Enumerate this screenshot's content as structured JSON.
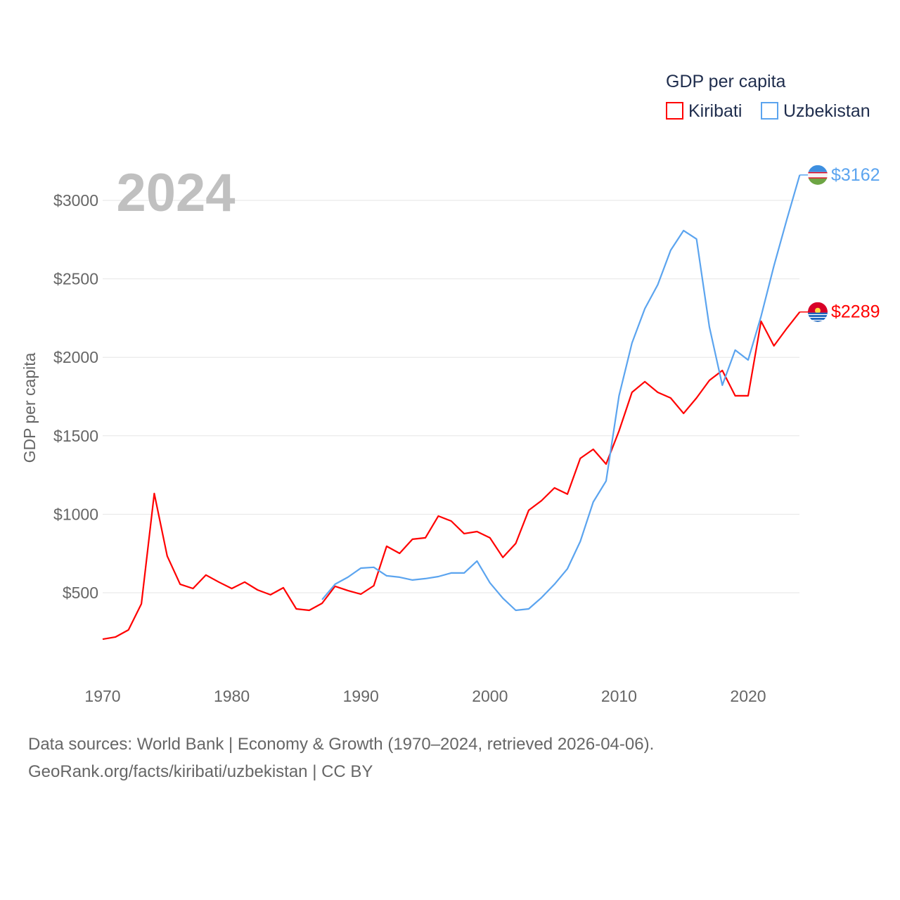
{
  "chart_data": {
    "type": "line",
    "title": "GDP per capita",
    "year_label": "2024",
    "ylabel": "GDP per capita",
    "xlabel": "",
    "xlim": [
      1970,
      2024
    ],
    "ylim": [
      0,
      3200
    ],
    "x_ticks": [
      1970,
      1980,
      1990,
      2000,
      2010,
      2020
    ],
    "y_ticks": [
      500,
      1000,
      1500,
      2000,
      2500,
      3000
    ],
    "y_tick_labels": [
      "$500",
      "$1000",
      "$1500",
      "$2000",
      "$2500",
      "$3000"
    ],
    "x_tick_labels": [
      "1970",
      "1980",
      "1990",
      "2000",
      "2010",
      "2020"
    ],
    "legend_position": "top-right",
    "series": [
      {
        "name": "Kiribati",
        "color": "#ff0000",
        "start": 1970,
        "end_label": "$2289",
        "values": [
          204,
          218,
          263,
          429,
          1132,
          734,
          554,
          527,
          613,
          568,
          527,
          568,
          518,
          487,
          532,
          397,
          388,
          433,
          541,
          514,
          491,
          545,
          796,
          751,
          841,
          850,
          989,
          957,
          877,
          890,
          850,
          725,
          814,
          1025,
          1087,
          1168,
          1128,
          1356,
          1414,
          1320,
          1531,
          1777,
          1845,
          1777,
          1741,
          1643,
          1741,
          1853,
          1916,
          1755,
          1755,
          2230,
          2073,
          2185,
          2289
        ]
      },
      {
        "name": "Uzbekistan",
        "color": "#5ba4ef",
        "start": 1987,
        "end_label": "$3162",
        "values": [
          456,
          554,
          599,
          657,
          662,
          608,
          599,
          581,
          590,
          603,
          626,
          626,
          702,
          563,
          465,
          388,
          397,
          469,
          554,
          653,
          827,
          1078,
          1212,
          1755,
          2091,
          2310,
          2463,
          2682,
          2808,
          2754,
          2194,
          1822,
          2046,
          1983,
          2261,
          2583,
          2879,
          3162
        ]
      }
    ]
  },
  "footer": {
    "line1": "Data sources: World Bank | Economy & Growth (1970–2024, retrieved 2026-04-06).",
    "line2": "GeoRank.org/facts/kiribati/uzbekistan | CC BY"
  }
}
